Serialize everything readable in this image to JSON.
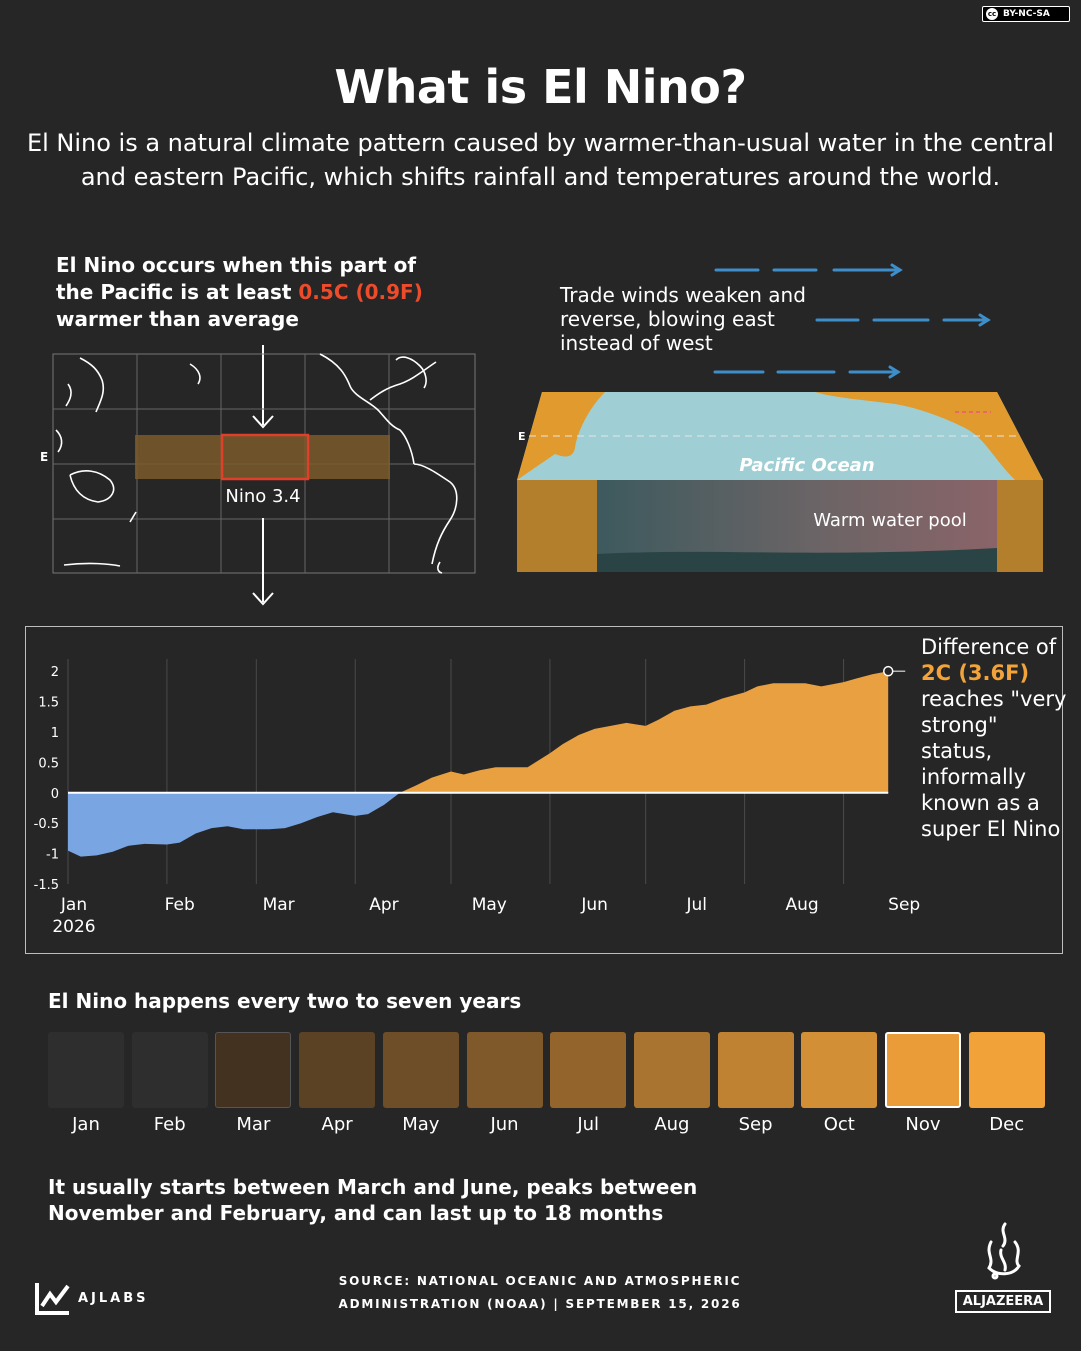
{
  "license": "BY-NC-SA",
  "header": {
    "title": "What is El Nino?",
    "subtitle": "El Nino is a natural climate pattern caused by warmer-than-usual water in the central and eastern Pacific, which shifts rainfall and temperatures around the world."
  },
  "map_panel": {
    "heading_part1": "El Nino occurs when this part of the Pacific is at least ",
    "heading_highlight": "0.5C (0.9F)",
    "heading_part2": " warmer than average",
    "region_label": "Nino 3.4",
    "equator_label": "E",
    "colors": {
      "band": "#7a5a2c",
      "box": "#e0402a"
    }
  },
  "ocean_panel": {
    "trade_winds_text": "Trade winds weaken and reverse, blowing east instead of west",
    "ocean_label": "Pacific Ocean",
    "pool_label": "Warm water pool",
    "equator_label": "E",
    "colors": {
      "arrow": "#3d8ec9",
      "land": "#e09a2e",
      "water": "#9fcfd4"
    }
  },
  "chart_data": {
    "type": "area",
    "y_ticks": [
      "2",
      "1.5",
      "1",
      "0.5",
      "0",
      "-0.5",
      "-1",
      "-1.5"
    ],
    "ylim": [
      -1.5,
      2.2
    ],
    "x_labels": [
      {
        "label": "Jan",
        "sub": "2026"
      },
      {
        "label": "Feb",
        "sub": ""
      },
      {
        "label": "Mar",
        "sub": ""
      },
      {
        "label": "Apr",
        "sub": ""
      },
      {
        "label": "May",
        "sub": ""
      },
      {
        "label": "Jun",
        "sub": ""
      },
      {
        "label": "Jul",
        "sub": ""
      },
      {
        "label": "Aug",
        "sub": ""
      },
      {
        "label": "Sep",
        "sub": ""
      }
    ],
    "x": [
      "2026-01-01",
      "2026-01-05",
      "2026-01-10",
      "2026-01-15",
      "2026-01-20",
      "2026-01-25",
      "2026-02-01",
      "2026-02-05",
      "2026-02-10",
      "2026-02-15",
      "2026-02-20",
      "2026-02-25",
      "2026-03-01",
      "2026-03-05",
      "2026-03-10",
      "2026-03-15",
      "2026-03-20",
      "2026-03-25",
      "2026-04-01",
      "2026-04-05",
      "2026-04-10",
      "2026-04-15",
      "2026-04-20",
      "2026-04-25",
      "2026-05-01",
      "2026-05-05",
      "2026-05-10",
      "2026-05-15",
      "2026-05-20",
      "2026-05-25",
      "2026-06-01",
      "2026-06-05",
      "2026-06-10",
      "2026-06-15",
      "2026-06-20",
      "2026-06-25",
      "2026-07-01",
      "2026-07-05",
      "2026-07-10",
      "2026-07-15",
      "2026-07-20",
      "2026-07-25",
      "2026-08-01",
      "2026-08-05",
      "2026-08-10",
      "2026-08-15",
      "2026-08-20",
      "2026-08-25",
      "2026-09-01",
      "2026-09-05",
      "2026-09-10",
      "2026-09-15"
    ],
    "y": [
      -0.95,
      -1.05,
      -1.03,
      -0.97,
      -0.87,
      -0.84,
      -0.85,
      -0.82,
      -0.67,
      -0.58,
      -0.55,
      -0.6,
      -0.6,
      -0.6,
      -0.58,
      -0.5,
      -0.4,
      -0.32,
      -0.38,
      -0.35,
      -0.2,
      0.0,
      0.12,
      0.25,
      0.35,
      0.3,
      0.37,
      0.42,
      0.42,
      0.42,
      0.65,
      0.8,
      0.95,
      1.05,
      1.1,
      1.15,
      1.1,
      1.2,
      1.35,
      1.42,
      1.45,
      1.55,
      1.65,
      1.75,
      1.8,
      1.8,
      1.8,
      1.75,
      1.82,
      1.88,
      1.95,
      2.0
    ],
    "colors": {
      "positive": "#e8a040",
      "negative": "#79a6e2"
    },
    "annotation_part1": "Difference of ",
    "annotation_highlight": "2C (3.6F)",
    "annotation_part2": " reaches \"very strong\" status, informally known as a super El Nino"
  },
  "cycle": {
    "heading": "El Nino happens every two to seven years",
    "months": [
      {
        "label": "Jan",
        "color": "#2e2e2e"
      },
      {
        "label": "Feb",
        "color": "#2e2e2e"
      },
      {
        "label": "Mar",
        "color": "#43321f"
      },
      {
        "label": "Apr",
        "color": "#5c4224"
      },
      {
        "label": "May",
        "color": "#6e4e28"
      },
      {
        "label": "Jun",
        "color": "#80592a"
      },
      {
        "label": "Jul",
        "color": "#93652d"
      },
      {
        "label": "Aug",
        "color": "#a97430"
      },
      {
        "label": "Sep",
        "color": "#bf8232"
      },
      {
        "label": "Oct",
        "color": "#d38f35"
      },
      {
        "label": "Nov",
        "color": "#ea9c38"
      },
      {
        "label": "Dec",
        "color": "#f1a33a"
      }
    ],
    "highlighted_month": "Nov",
    "summary": "It usually starts between March and June, peaks between November and February, and can last up to 18 months"
  },
  "footer": {
    "source_line1": "SOURCE:   NATIONAL OCEANIC AND ATMOSPHERIC",
    "source_line2": "ADMINISTRATION (NOAA)   |   SEPTEMBER 15, 2026",
    "ajlabs": "AJLABS",
    "aljazeera": "ALJAZEERA"
  }
}
